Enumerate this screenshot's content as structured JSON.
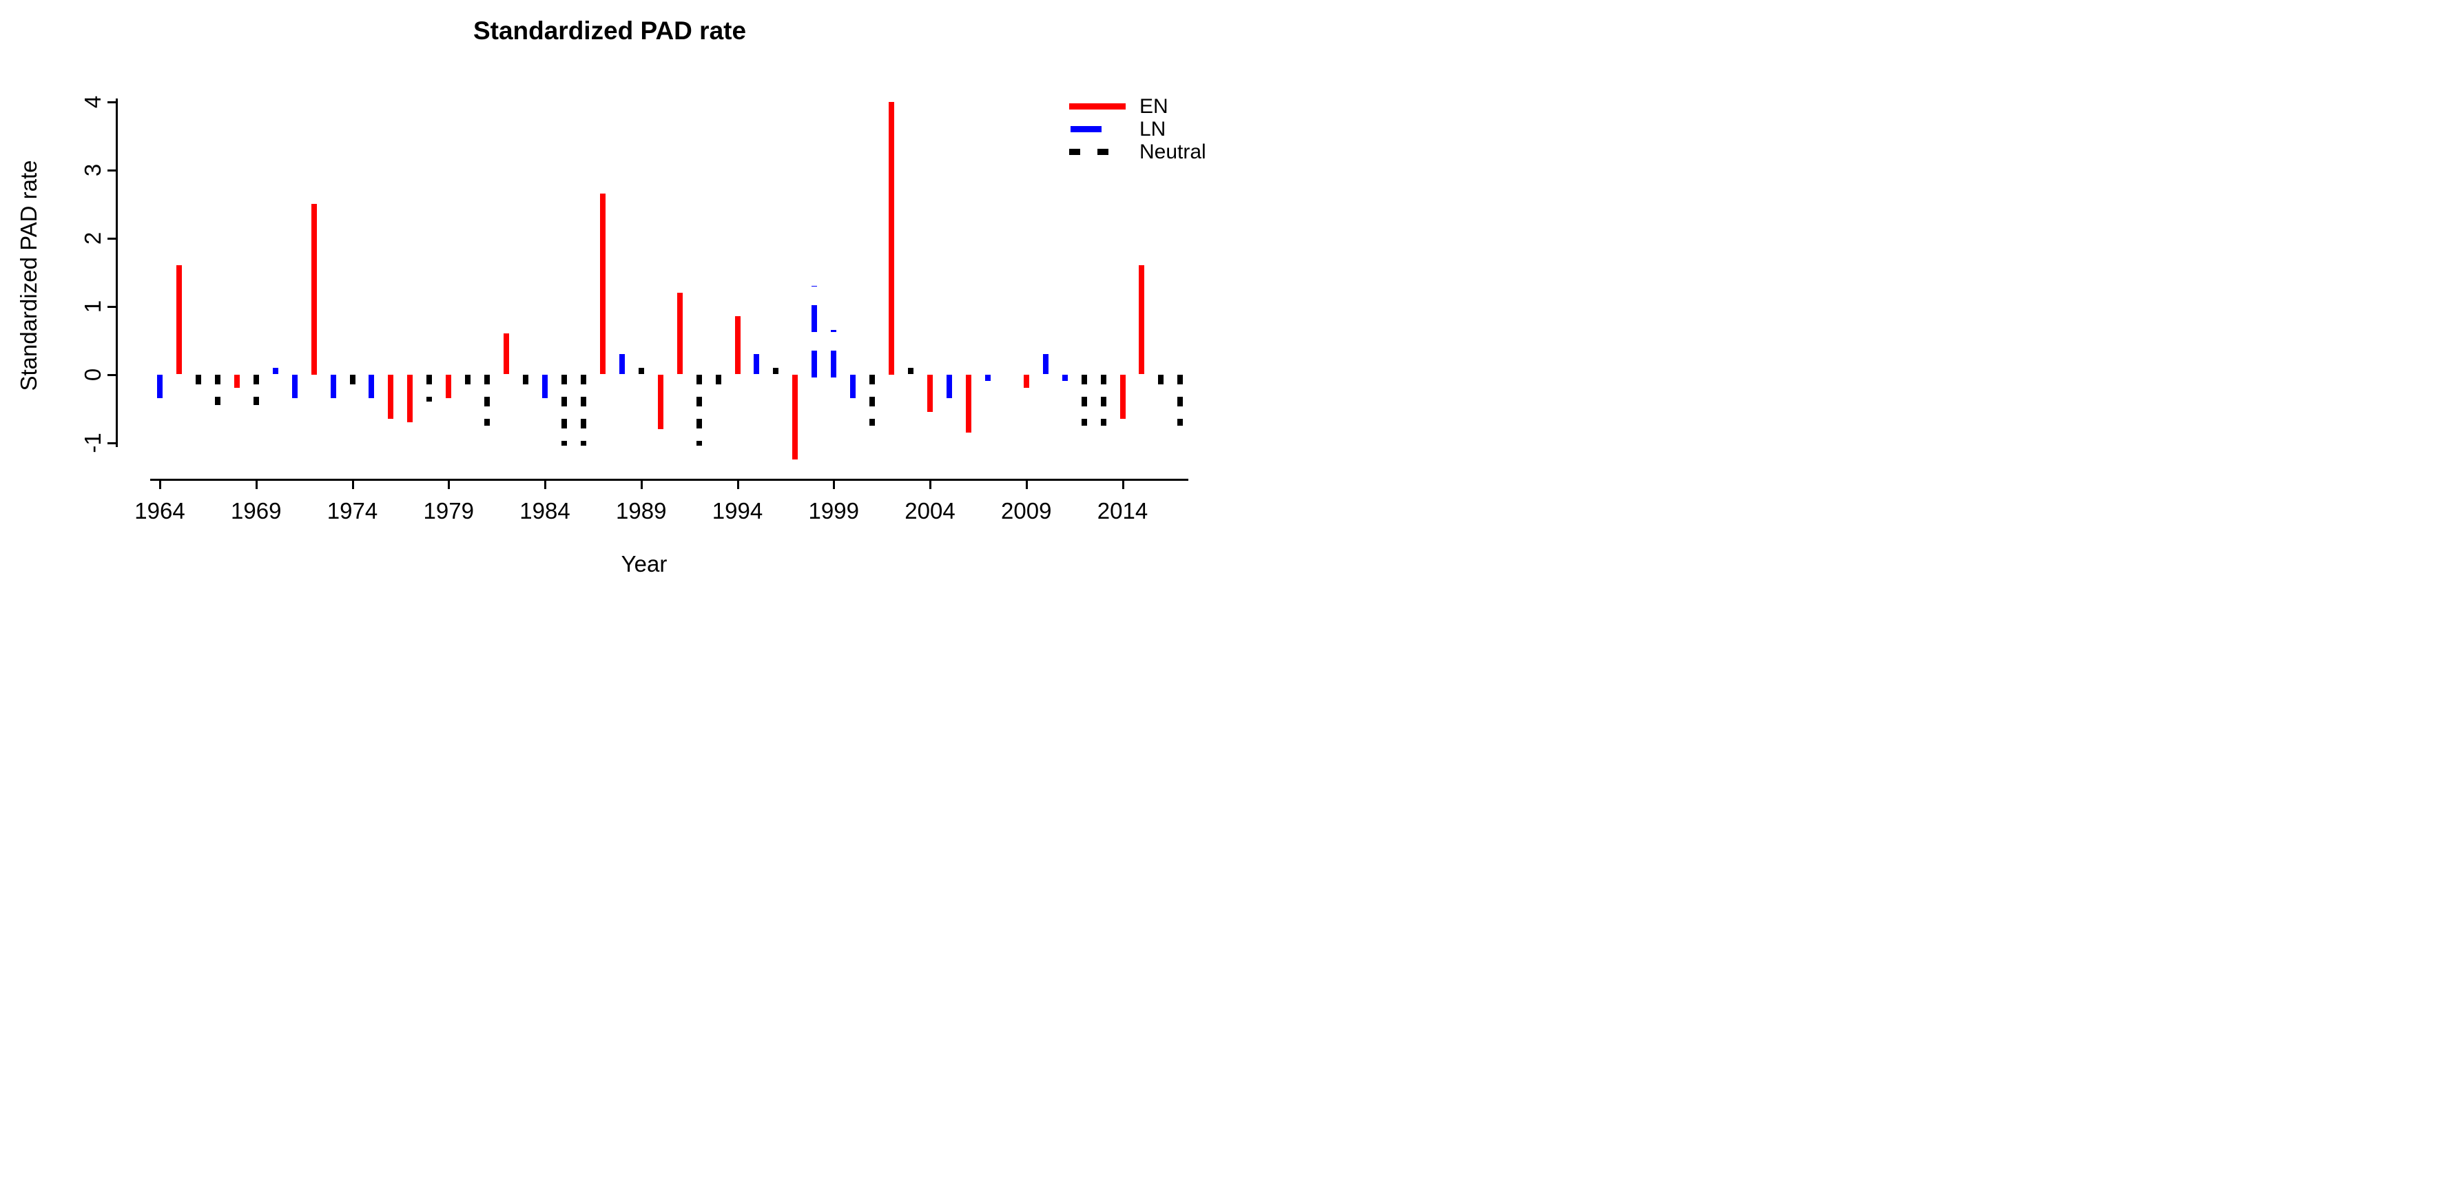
{
  "page": {
    "background": "#ffffff"
  },
  "chart_data": {
    "type": "bar",
    "title": "Standardized PAD rate",
    "xlabel": "Year",
    "ylabel": "Standardized PAD rate",
    "x_ticks": [
      1964,
      1969,
      1974,
      1979,
      1984,
      1989,
      1994,
      1999,
      2004,
      2009,
      2014
    ],
    "y_ticks": [
      -1,
      0,
      1,
      2,
      3,
      4
    ],
    "xlim": [
      1963.5,
      2017.5
    ],
    "ylim": [
      -1.45,
      4.15
    ],
    "grid": "off",
    "colors": {
      "EN": "#ff0000",
      "LN": "#0000ff",
      "Neutral": "#000000"
    },
    "legend": {
      "position": "top-right",
      "items": [
        {
          "label": "EN",
          "color": "#ff0000",
          "style": "solid"
        },
        {
          "label": "LN",
          "color": "#0000ff",
          "style": "solid"
        },
        {
          "label": "Neutral",
          "color": "#000000",
          "style": "dashed"
        }
      ]
    },
    "series": [
      {
        "year": 1964,
        "value": -0.35,
        "category": "LN"
      },
      {
        "year": 1965,
        "value": 1.6,
        "category": "EN"
      },
      {
        "year": 1966,
        "value": -0.15,
        "category": "Neutral"
      },
      {
        "year": 1967,
        "value": -0.45,
        "category": "Neutral"
      },
      {
        "year": 1968,
        "value": -0.2,
        "category": "EN"
      },
      {
        "year": 1969,
        "value": -0.45,
        "category": "Neutral"
      },
      {
        "year": 1970,
        "value": 0.1,
        "category": "LN"
      },
      {
        "year": 1971,
        "value": -0.35,
        "category": "LN"
      },
      {
        "year": 1972,
        "value": 2.5,
        "category": "EN"
      },
      {
        "year": 1973,
        "value": -0.35,
        "category": "LN"
      },
      {
        "year": 1974,
        "value": -0.15,
        "category": "Neutral"
      },
      {
        "year": 1975,
        "value": -0.35,
        "category": "LN"
      },
      {
        "year": 1976,
        "value": -0.65,
        "category": "EN"
      },
      {
        "year": 1977,
        "value": -0.7,
        "category": "EN"
      },
      {
        "year": 1978,
        "value": -0.4,
        "category": "Neutral"
      },
      {
        "year": 1979,
        "value": -0.35,
        "category": "EN"
      },
      {
        "year": 1980,
        "value": -0.15,
        "category": "Neutral"
      },
      {
        "year": 1981,
        "value": -0.75,
        "category": "Neutral"
      },
      {
        "year": 1982,
        "value": 0.6,
        "category": "EN"
      },
      {
        "year": 1983,
        "value": -0.15,
        "category": "Neutral"
      },
      {
        "year": 1984,
        "value": -0.35,
        "category": "LN"
      },
      {
        "year": 1985,
        "value": -1.05,
        "category": "Neutral"
      },
      {
        "year": 1986,
        "value": -1.05,
        "category": "Neutral"
      },
      {
        "year": 1987,
        "value": 2.65,
        "category": "EN"
      },
      {
        "year": 1988,
        "value": 0.3,
        "category": "LN"
      },
      {
        "year": 1989,
        "value": 0.1,
        "category": "Neutral"
      },
      {
        "year": 1990,
        "value": -0.8,
        "category": "EN"
      },
      {
        "year": 1991,
        "value": 1.2,
        "category": "EN"
      },
      {
        "year": 1992,
        "value": -1.05,
        "category": "Neutral"
      },
      {
        "year": 1993,
        "value": -0.15,
        "category": "Neutral"
      },
      {
        "year": 1994,
        "value": 0.85,
        "category": "EN"
      },
      {
        "year": 1995,
        "value": 0.3,
        "category": "LN"
      },
      {
        "year": 1996,
        "value": 0.1,
        "category": "Neutral"
      },
      {
        "year": 1997,
        "value": -1.25,
        "category": "EN"
      },
      {
        "year": 1998,
        "value": 1.3,
        "category": "LN",
        "dashed": true
      },
      {
        "year": 1999,
        "value": 0.65,
        "category": "LN",
        "dashed": true
      },
      {
        "year": 2000,
        "value": -0.35,
        "category": "LN"
      },
      {
        "year": 2001,
        "value": -0.75,
        "category": "Neutral"
      },
      {
        "year": 2002,
        "value": 4.0,
        "category": "EN"
      },
      {
        "year": 2003,
        "value": 0.1,
        "category": "Neutral"
      },
      {
        "year": 2004,
        "value": -0.55,
        "category": "EN"
      },
      {
        "year": 2005,
        "value": -0.35,
        "category": "LN"
      },
      {
        "year": 2006,
        "value": -0.85,
        "category": "EN"
      },
      {
        "year": 2007,
        "value": -0.1,
        "category": "LN"
      },
      {
        "year": 2008,
        "value": 0.0,
        "category": "none"
      },
      {
        "year": 2009,
        "value": -0.2,
        "category": "EN"
      },
      {
        "year": 2010,
        "value": 0.3,
        "category": "LN"
      },
      {
        "year": 2011,
        "value": -0.1,
        "category": "LN"
      },
      {
        "year": 2012,
        "value": -0.75,
        "category": "Neutral"
      },
      {
        "year": 2013,
        "value": -0.75,
        "category": "Neutral"
      },
      {
        "year": 2014,
        "value": -0.65,
        "category": "EN"
      },
      {
        "year": 2015,
        "value": 1.6,
        "category": "EN"
      },
      {
        "year": 2016,
        "value": -0.15,
        "category": "Neutral"
      },
      {
        "year": 2017,
        "value": -0.75,
        "category": "Neutral"
      }
    ]
  }
}
